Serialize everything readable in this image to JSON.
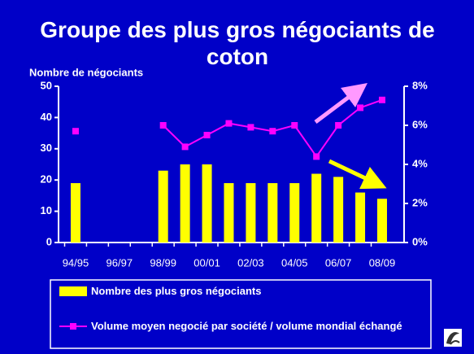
{
  "chart_data": {
    "type": "bar-line",
    "title": "Groupe des plus gros négociants de coton",
    "y_label": "Nombre de négociants",
    "categories": [
      "94/95",
      null,
      "96/97",
      null,
      "98/99",
      null,
      "00/01",
      null,
      "02/03",
      null,
      "04/05",
      null,
      "06/07",
      null,
      "08/09"
    ],
    "series": [
      {
        "name": "Nombre des plus gros négociants",
        "color": "#ffff00",
        "type": "bar",
        "values": [
          19,
          null,
          null,
          null,
          23,
          25,
          25,
          19,
          19,
          19,
          19,
          22,
          21,
          16,
          14
        ]
      },
      {
        "name": "Volume moyen negocié par société / volume mondial échangé",
        "color": "#ff00ff",
        "type": "line",
        "axis": "y2",
        "values": [
          5.7,
          null,
          null,
          null,
          6.0,
          4.9,
          5.5,
          6.1,
          5.9,
          5.7,
          6.0,
          4.4,
          6.0,
          6.9,
          7.3
        ]
      }
    ],
    "ylim": [
      0,
      50
    ],
    "yticks": [
      0,
      10,
      20,
      30,
      40,
      50
    ],
    "y2lim": [
      0,
      8
    ],
    "y2ticks": [
      {
        "value": 0,
        "label": "0%"
      },
      {
        "value": 2,
        "label": "2%"
      },
      {
        "value": 4,
        "label": "4%"
      },
      {
        "value": 6,
        "label": "6%"
      },
      {
        "value": 8,
        "label": "8%"
      }
    ]
  }
}
